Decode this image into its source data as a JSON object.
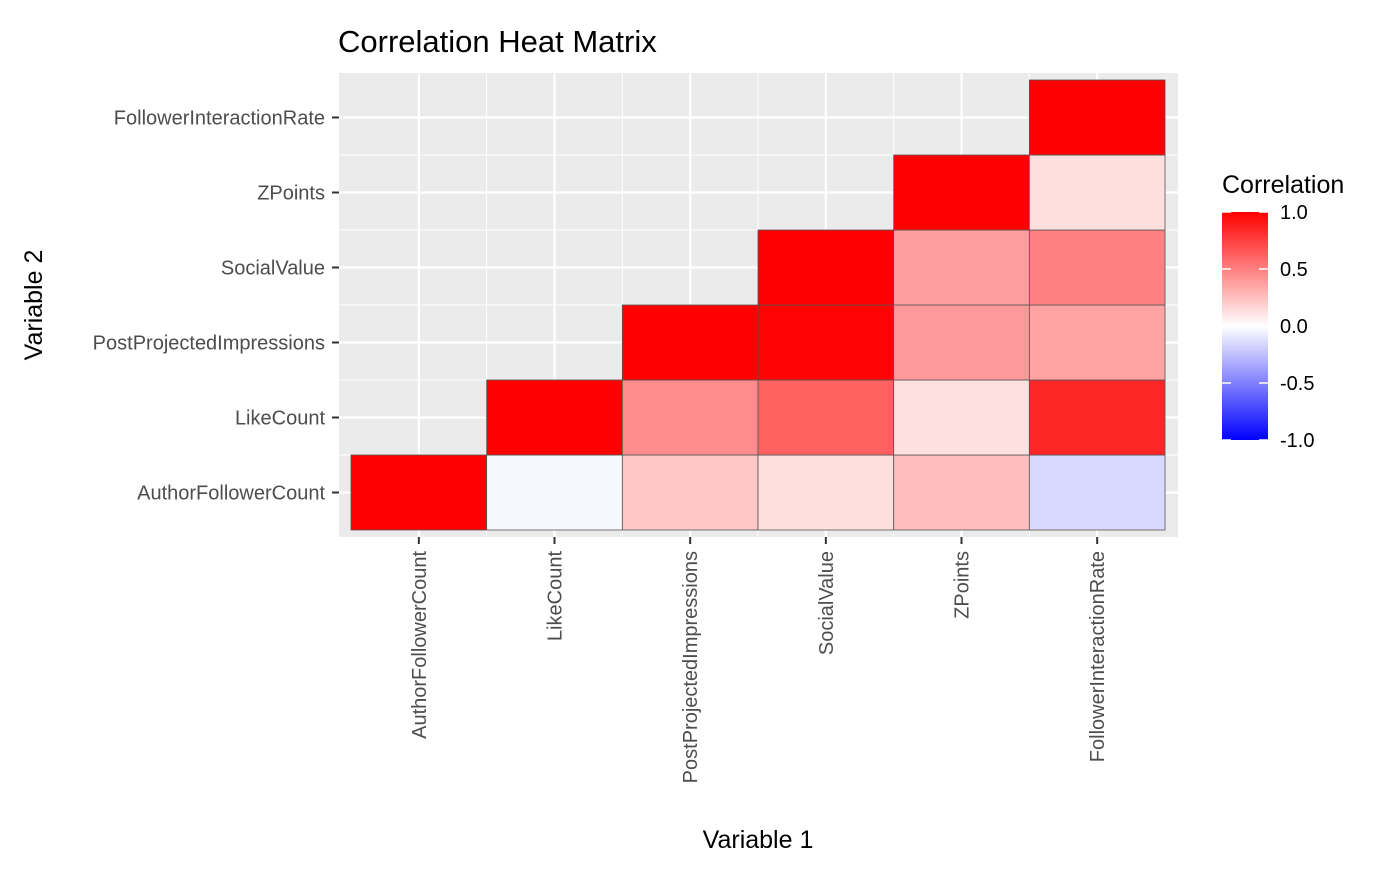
{
  "chart_data": {
    "type": "heatmap",
    "title": "Correlation Heat Matrix",
    "xlabel": "Variable 1",
    "ylabel": "Variable 2",
    "x_categories": [
      "AuthorFollowerCount",
      "LikeCount",
      "PostProjectedImpressions",
      "SocialValue",
      "ZPoints",
      "FollowerInteractionRate"
    ],
    "y_categories": [
      "AuthorFollowerCount",
      "LikeCount",
      "PostProjectedImpressions",
      "SocialValue",
      "ZPoints",
      "FollowerInteractionRate"
    ],
    "cells": [
      {
        "x": "AuthorFollowerCount",
        "y": "AuthorFollowerCount",
        "value": 1.0
      },
      {
        "x": "LikeCount",
        "y": "AuthorFollowerCount",
        "value": -0.03
      },
      {
        "x": "LikeCount",
        "y": "LikeCount",
        "value": 1.0
      },
      {
        "x": "PostProjectedImpressions",
        "y": "AuthorFollowerCount",
        "value": 0.22
      },
      {
        "x": "PostProjectedImpressions",
        "y": "LikeCount",
        "value": 0.45
      },
      {
        "x": "PostProjectedImpressions",
        "y": "PostProjectedImpressions",
        "value": 1.0
      },
      {
        "x": "SocialValue",
        "y": "AuthorFollowerCount",
        "value": 0.13
      },
      {
        "x": "SocialValue",
        "y": "LikeCount",
        "value": 0.62
      },
      {
        "x": "SocialValue",
        "y": "PostProjectedImpressions",
        "value": 0.99
      },
      {
        "x": "SocialValue",
        "y": "SocialValue",
        "value": 1.0
      },
      {
        "x": "ZPoints",
        "y": "AuthorFollowerCount",
        "value": 0.26
      },
      {
        "x": "ZPoints",
        "y": "LikeCount",
        "value": 0.12
      },
      {
        "x": "ZPoints",
        "y": "PostProjectedImpressions",
        "value": 0.4
      },
      {
        "x": "ZPoints",
        "y": "SocialValue",
        "value": 0.38
      },
      {
        "x": "ZPoints",
        "y": "ZPoints",
        "value": 1.0
      },
      {
        "x": "FollowerInteractionRate",
        "y": "AuthorFollowerCount",
        "value": -0.15
      },
      {
        "x": "FollowerInteractionRate",
        "y": "LikeCount",
        "value": 0.85
      },
      {
        "x": "FollowerInteractionRate",
        "y": "PostProjectedImpressions",
        "value": 0.36
      },
      {
        "x": "FollowerInteractionRate",
        "y": "SocialValue",
        "value": 0.5
      },
      {
        "x": "FollowerInteractionRate",
        "y": "ZPoints",
        "value": 0.13
      },
      {
        "x": "FollowerInteractionRate",
        "y": "FollowerInteractionRate",
        "value": 1.0
      }
    ],
    "color_scale": {
      "low": "#0000FF",
      "mid": "#FFFFFF",
      "high": "#FF0000",
      "limits": [
        -1,
        1
      ]
    },
    "legend": {
      "title": "Correlation",
      "position": "right",
      "ticks": [
        1.0,
        0.5,
        0.0,
        -0.5,
        -1.0
      ],
      "tick_labels": [
        "1.0",
        "0.5",
        "0.0",
        "-0.5",
        "-1.0"
      ]
    },
    "panel_background": "#EBEBEB",
    "grid": true
  }
}
